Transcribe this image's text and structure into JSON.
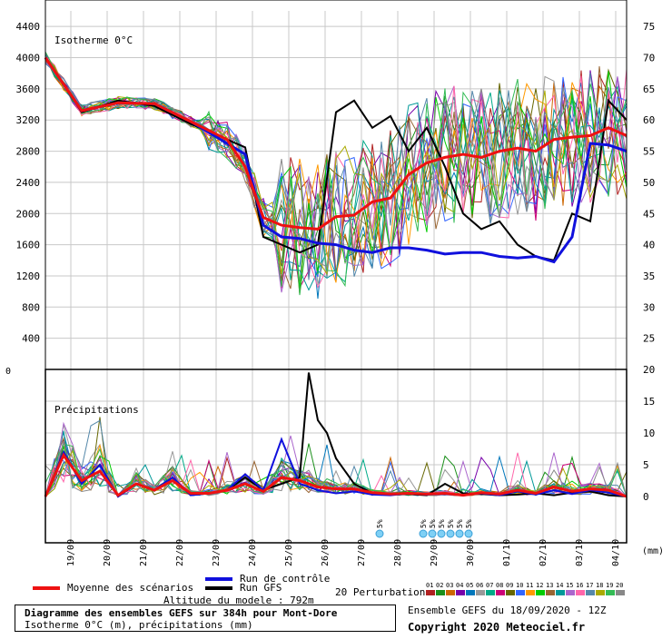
{
  "colors": {
    "mean": "#ee1111",
    "control": "#1010dd",
    "gfs": "#000000",
    "members": [
      "#b02020",
      "#1a8f1a",
      "#cc6600",
      "#7700aa",
      "#0077bb",
      "#999999",
      "#00aa88",
      "#cc0077",
      "#666600",
      "#3366ff",
      "#ff9900",
      "#00cc00",
      "#996633",
      "#009999",
      "#aa66cc",
      "#ff66aa",
      "#5588aa",
      "#aaaa00",
      "#33bb55",
      "#888888"
    ]
  },
  "header": {
    "panel_top_label": "Isotherme 0°C",
    "panel_bottom_label": "Précipitations",
    "unit_label": "(mm)",
    "top_left_zero": "0"
  },
  "legend": {
    "mean_label": "Moyenne des scénarios",
    "control_label": "Run de contrôle",
    "gfs_label": "Run GFS",
    "perturbations_label": "20 Perturbations",
    "perturbation_ids": [
      "01",
      "02",
      "03",
      "04",
      "05",
      "06",
      "07",
      "08",
      "09",
      "10",
      "11",
      "12",
      "13",
      "14",
      "15",
      "16",
      "17",
      "18",
      "19",
      "20"
    ]
  },
  "footer": {
    "altitude": "Altitude du modele : 792m",
    "title_line1": "Diagramme des ensembles GEFS sur 384h pour Mont-Dore",
    "title_line2": "Isotherme 0°C (m), précipitations (mm)",
    "ensemble_info": "Ensemble GEFS du 18/09/2020 - 12Z",
    "copyright": "Copyright 2020 Meteociel.fr"
  },
  "snow": [
    {
      "t": 9.2,
      "label": "5%"
    },
    {
      "t": 10.4,
      "label": "5%"
    },
    {
      "t": 10.65,
      "label": "5%"
    },
    {
      "t": 10.9,
      "label": "5%"
    },
    {
      "t": 11.15,
      "label": "5%"
    },
    {
      "t": 11.4,
      "label": "5%"
    },
    {
      "t": 11.65,
      "label": "5%"
    }
  ],
  "chart_data": {
    "type": "line",
    "x_tick_labels": [
      "19/09",
      "20/09",
      "21/09",
      "22/09",
      "23/09",
      "24/09",
      "25/09",
      "26/09",
      "27/09",
      "28/09",
      "29/09",
      "30/09",
      "01/10",
      "02/10",
      "03/10",
      "04/10"
    ],
    "x_range_days": [
      0,
      16
    ],
    "upper_panel": {
      "label": "Isotherme 0°C",
      "y_left_ticks": [
        400,
        800,
        1200,
        1600,
        2000,
        2400,
        2800,
        3200,
        3600,
        4000,
        4400
      ],
      "y_left_range": [
        0,
        4600
      ],
      "y_right_ticks": [
        25,
        30,
        35,
        40,
        45,
        50,
        55,
        60,
        65,
        70,
        75
      ],
      "series": {
        "mean": {
          "t": [
            0,
            1,
            2,
            3,
            4,
            5,
            5.5,
            6,
            6.5,
            7,
            7.5,
            8,
            8.5,
            9,
            9.5,
            10,
            10.5,
            11,
            11.5,
            12,
            12.5,
            13,
            13.5,
            14,
            14.5,
            15,
            15.5,
            16
          ],
          "v": [
            4000,
            3320,
            3420,
            3410,
            3180,
            2950,
            2600,
            1950,
            1850,
            1820,
            1800,
            1960,
            1980,
            2150,
            2200,
            2500,
            2650,
            2720,
            2760,
            2720,
            2800,
            2840,
            2800,
            2950,
            2980,
            3000,
            3100,
            3000
          ]
        },
        "control": {
          "t": [
            0,
            1,
            2,
            3,
            4,
            5,
            5.5,
            6,
            6.5,
            7,
            7.5,
            8,
            8.5,
            9,
            9.5,
            10,
            10.5,
            11,
            11.5,
            12,
            12.5,
            13,
            13.5,
            14,
            14.5,
            15,
            15.5,
            16
          ],
          "v": [
            4000,
            3320,
            3420,
            3410,
            3180,
            2900,
            2760,
            1850,
            1700,
            1680,
            1620,
            1600,
            1530,
            1500,
            1560,
            1560,
            1530,
            1480,
            1500,
            1500,
            1450,
            1430,
            1450,
            1380,
            1700,
            2900,
            2880,
            2800
          ]
        },
        "gfs": {
          "t": [
            0,
            1,
            2,
            3,
            4,
            5,
            5.5,
            6,
            6.5,
            7,
            7.5,
            8,
            8.5,
            9,
            9.5,
            10,
            10.5,
            11,
            11.5,
            12,
            12.5,
            13,
            13.5,
            14,
            14.5,
            15,
            15.5,
            16
          ],
          "v": [
            4000,
            3300,
            3450,
            3380,
            3150,
            2950,
            2850,
            1700,
            1600,
            1500,
            1600,
            3300,
            3450,
            3100,
            3250,
            2800,
            3100,
            2600,
            2000,
            1800,
            1900,
            1600,
            1450,
            1400,
            2000,
            1900,
            3450,
            3200
          ]
        }
      }
    },
    "lower_panel": {
      "label": "Précipitations",
      "unit": "mm",
      "y_ticks": [
        0,
        5,
        10,
        15,
        20
      ],
      "y_range": [
        0,
        20
      ],
      "series": {
        "mean": {
          "t": [
            0,
            0.5,
            1,
            1.5,
            2,
            2.5,
            3,
            3.5,
            4,
            4.5,
            5,
            5.5,
            6,
            6.5,
            7,
            7.5,
            8,
            8.5,
            9,
            9.5,
            10,
            10.5,
            11,
            11.5,
            12,
            12.5,
            13,
            13.5,
            14,
            14.5,
            15,
            15.5,
            16
          ],
          "v": [
            0,
            6.5,
            2.5,
            4,
            0.2,
            2,
            1,
            2.5,
            0.5,
            0.5,
            1,
            2,
            0.8,
            3,
            2.5,
            1.5,
            1.2,
            1.2,
            0.6,
            0.4,
            0.5,
            0.4,
            0.5,
            0.2,
            0.6,
            0.4,
            1,
            0.5,
            1.5,
            0.8,
            1.2,
            1,
            0
          ]
        },
        "control": {
          "t": [
            0,
            0.5,
            1,
            1.5,
            2,
            2.5,
            3,
            3.5,
            4,
            4.5,
            5,
            5.5,
            6,
            6.5,
            7,
            7.5,
            8,
            8.5,
            9,
            9.5,
            10,
            10.5,
            11,
            11.5,
            12,
            12.5,
            13,
            13.5,
            14,
            14.5,
            15,
            15.5,
            16
          ],
          "v": [
            0,
            7,
            2,
            5,
            0,
            2,
            1,
            3,
            0.2,
            0.5,
            1,
            3.5,
            1,
            9,
            2,
            1,
            0.5,
            0.8,
            0.3,
            0.2,
            0.5,
            0.3,
            0.4,
            0.2,
            0.5,
            0.2,
            0.8,
            0.3,
            1,
            0.4,
            1,
            0.6,
            0
          ]
        },
        "gfs": {
          "t": [
            0,
            0.5,
            1,
            1.5,
            2,
            2.5,
            3,
            3.5,
            4,
            4.5,
            5,
            5.5,
            6,
            6.5,
            7,
            7.25,
            7.5,
            7.75,
            8,
            8.5,
            9,
            9.5,
            10,
            10.5,
            11,
            11.5,
            12,
            12.5,
            13,
            13.5,
            14,
            14.5,
            15,
            15.5,
            16
          ],
          "v": [
            0,
            7,
            2,
            5,
            0,
            2,
            1,
            3,
            0.2,
            0.5,
            1,
            3,
            1,
            2,
            3,
            19.5,
            12,
            10,
            6,
            2,
            0.5,
            0.3,
            0.4,
            0.2,
            2,
            0.5,
            0.4,
            0.2,
            0.3,
            0.5,
            0.2,
            0.6,
            0.8,
            0.2,
            0
          ]
        }
      }
    }
  }
}
